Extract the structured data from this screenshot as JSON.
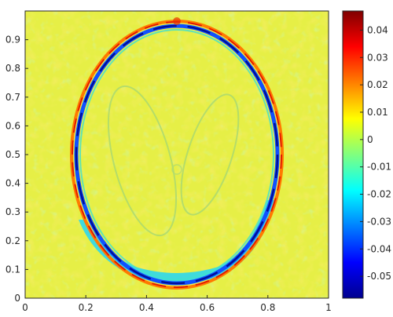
{
  "chart_data": {
    "type": "heatmap",
    "title": "",
    "xlabel": "",
    "ylabel": "",
    "xlim": [
      0,
      1
    ],
    "ylim": [
      0,
      1
    ],
    "x_ticks": [
      "0",
      "0.2",
      "0.4",
      "0.6",
      "0.8",
      "1"
    ],
    "y_ticks": [
      "0",
      "0.1",
      "0.2",
      "0.3",
      "0.4",
      "0.5",
      "0.6",
      "0.7",
      "0.8",
      "0.9"
    ],
    "colormap": "jet",
    "clim": [
      -0.058,
      0.047
    ],
    "colorbar_ticks": [
      "0.04",
      "0.03",
      "0.02",
      "0.01",
      "0",
      "-0.01",
      "-0.02",
      "-0.03",
      "-0.04",
      "-0.05"
    ],
    "background_level": 0.005,
    "features": [
      {
        "shape": "ellipse",
        "center": [
          0.5,
          0.5
        ],
        "semi_axes": [
          0.34,
          0.45
        ],
        "inner_band_value": -0.05,
        "outer_rim_value": 0.025
      },
      {
        "shape": "ellipse",
        "center": [
          0.5,
          0.165
        ],
        "semi_axes": [
          0.34,
          0.09
        ],
        "band_value": -0.02
      },
      {
        "shape": "ellipse",
        "center": [
          0.39,
          0.44
        ],
        "semi_axes": [
          0.1,
          0.27
        ],
        "edge_value": -0.005
      },
      {
        "shape": "ellipse",
        "center": [
          0.61,
          0.46
        ],
        "semi_axes": [
          0.08,
          0.22
        ],
        "edge_value": -0.005
      }
    ],
    "colors": {
      "background": "#e6ef46",
      "dark_blue": "#0010b0",
      "blue": "#1060ff",
      "cyan": "#33d8e8",
      "red": "#e02000",
      "orange": "#ff9a00"
    }
  }
}
